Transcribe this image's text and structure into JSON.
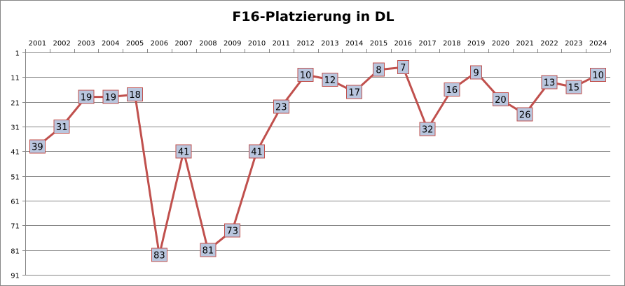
{
  "chart_data": {
    "type": "line",
    "title": "F16-Platzierung in DL",
    "xlabel": "",
    "ylabel": "",
    "x": [
      "2001",
      "2002",
      "2003",
      "2004",
      "2005",
      "2006",
      "2007",
      "2008",
      "2009",
      "2010",
      "2011",
      "2012",
      "2013",
      "2014",
      "2015",
      "2016",
      "2017",
      "2018",
      "2019",
      "2020",
      "2021",
      "2022",
      "2023",
      "2024"
    ],
    "series": [
      {
        "values": [
          39,
          31,
          19,
          19,
          18,
          83,
          41,
          81,
          73,
          41,
          23,
          10,
          12,
          17,
          8,
          7,
          32,
          16,
          9,
          20,
          26,
          13,
          15,
          10
        ]
      }
    ],
    "yticks": [
      1,
      11,
      21,
      31,
      41,
      51,
      61,
      71,
      81,
      91
    ],
    "ylim": [
      1,
      91
    ],
    "y_reversed": true,
    "x_axis_position": "top",
    "grid": true,
    "legend": "none",
    "line_color": "#c0504d",
    "label_box_fill": "#b9c6de",
    "label_box_border": "#c0504d",
    "grid_color": "#868686"
  }
}
